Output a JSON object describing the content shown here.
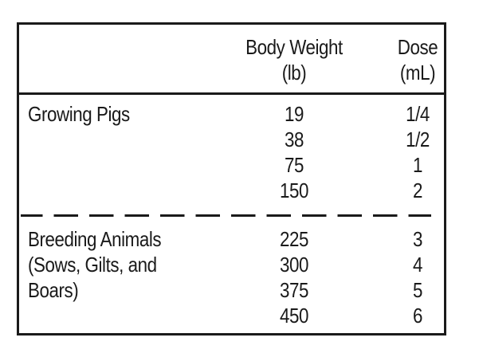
{
  "table": {
    "headers": {
      "weight": [
        "Body Weight",
        "(lb)"
      ],
      "dose": [
        "Dose",
        "(mL)"
      ]
    },
    "groups": [
      {
        "label_lines": [
          "Growing Pigs"
        ],
        "weights": [
          "19",
          "38",
          "75",
          "150"
        ],
        "doses": [
          "1/4",
          "1/2",
          "1",
          "2"
        ]
      },
      {
        "label_lines": [
          "Breeding Animals",
          "(Sows, Gilts, and",
          "Boars)"
        ],
        "weights": [
          "225",
          "300",
          "375",
          "450"
        ],
        "doses": [
          "3",
          "4",
          "5",
          "6"
        ]
      }
    ]
  }
}
